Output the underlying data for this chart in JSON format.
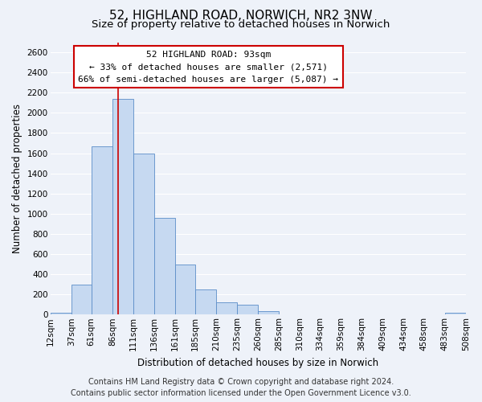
{
  "title": "52, HIGHLAND ROAD, NORWICH, NR2 3NW",
  "subtitle": "Size of property relative to detached houses in Norwich",
  "xlabel": "Distribution of detached houses by size in Norwich",
  "ylabel": "Number of detached properties",
  "bar_edges": [
    12,
    37,
    61,
    86,
    111,
    136,
    161,
    185,
    210,
    235,
    260,
    285,
    310,
    334,
    359,
    384,
    409,
    434,
    458,
    483,
    508
  ],
  "bar_heights": [
    20,
    295,
    1670,
    2140,
    1600,
    960,
    500,
    250,
    120,
    95,
    35,
    5,
    5,
    2,
    2,
    2,
    2,
    2,
    2,
    20,
    0
  ],
  "bar_color": "#c6d9f1",
  "bar_edge_color": "#5b8dc8",
  "annotation_line1": "52 HIGHLAND ROAD: 93sqm",
  "annotation_line2": "← 33% of detached houses are smaller (2,571)",
  "annotation_line3": "66% of semi-detached houses are larger (5,087) →",
  "annotation_box_facecolor": "white",
  "annotation_box_edgecolor": "#cc0000",
  "property_line_x": 93,
  "property_line_color": "#cc0000",
  "ylim": [
    0,
    2700
  ],
  "yticks": [
    0,
    200,
    400,
    600,
    800,
    1000,
    1200,
    1400,
    1600,
    1800,
    2000,
    2200,
    2400,
    2600
  ],
  "tick_labels": [
    "12sqm",
    "37sqm",
    "61sqm",
    "86sqm",
    "111sqm",
    "136sqm",
    "161sqm",
    "185sqm",
    "210sqm",
    "235sqm",
    "260sqm",
    "285sqm",
    "310sqm",
    "334sqm",
    "359sqm",
    "384sqm",
    "409sqm",
    "434sqm",
    "458sqm",
    "483sqm",
    "508sqm"
  ],
  "footer_line1": "Contains HM Land Registry data © Crown copyright and database right 2024.",
  "footer_line2": "Contains public sector information licensed under the Open Government Licence v3.0.",
  "background_color": "#eef2f9",
  "grid_color": "white",
  "title_fontsize": 11,
  "subtitle_fontsize": 9.5,
  "axis_label_fontsize": 8.5,
  "tick_fontsize": 7.5,
  "footer_fontsize": 7
}
